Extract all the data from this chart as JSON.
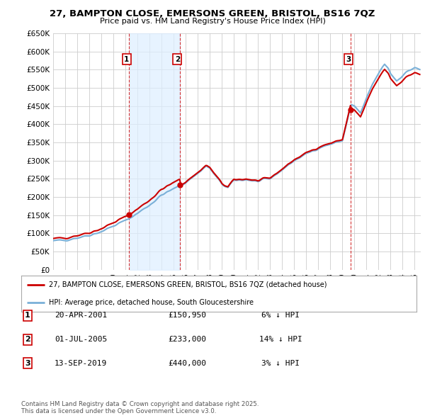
{
  "title": "27, BAMPTON CLOSE, EMERSONS GREEN, BRISTOL, BS16 7QZ",
  "subtitle": "Price paid vs. HM Land Registry's House Price Index (HPI)",
  "ylim": [
    0,
    650000
  ],
  "yticks": [
    0,
    50000,
    100000,
    150000,
    200000,
    250000,
    300000,
    350000,
    400000,
    450000,
    500000,
    550000,
    600000,
    650000
  ],
  "xlim_start": 1995.0,
  "xlim_end": 2025.5,
  "background_color": "#ffffff",
  "grid_color": "#cccccc",
  "hpi_color": "#7ab0d8",
  "price_color": "#cc0000",
  "shade_color": "#ddeeff",
  "sale_dates_num": [
    2001.3,
    2005.5,
    2019.71
  ],
  "sale_prices": [
    150950,
    233000,
    440000
  ],
  "sale_labels": [
    "1",
    "2",
    "3"
  ],
  "legend_label_red": "27, BAMPTON CLOSE, EMERSONS GREEN, BRISTOL, BS16 7QZ (detached house)",
  "legend_label_blue": "HPI: Average price, detached house, South Gloucestershire",
  "table_rows": [
    [
      "1",
      "20-APR-2001",
      "£150,950",
      "6% ↓ HPI"
    ],
    [
      "2",
      "01-JUL-2005",
      "£233,000",
      "14% ↓ HPI"
    ],
    [
      "3",
      "13-SEP-2019",
      "£440,000",
      "3% ↓ HPI"
    ]
  ],
  "footer": "Contains HM Land Registry data © Crown copyright and database right 2025.\nThis data is licensed under the Open Government Licence v3.0."
}
